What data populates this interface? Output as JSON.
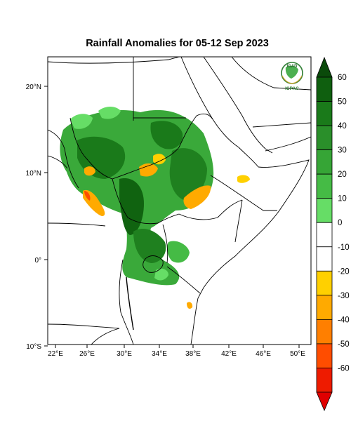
{
  "title": "Rainfall Anomalies for 05-12 Sep 2023",
  "logo": {
    "org_top": "IGAD",
    "org_bottom": "ICPAC"
  },
  "axes": {
    "lon_labels": [
      "22°E",
      "26°E",
      "30°E",
      "34°E",
      "38°E",
      "42°E",
      "46°E",
      "50°E"
    ],
    "lat_labels": [
      "20°N",
      "10°N",
      "0°",
      "10°S"
    ]
  },
  "colorbar": {
    "labels": [
      "60",
      "50",
      "40",
      "30",
      "20",
      "10",
      "0",
      "-10",
      "-20",
      "-30",
      "-40",
      "-50",
      "-60"
    ],
    "colors": [
      "#0f5f0f",
      "#1a7a1a",
      "#2a8f2a",
      "#36a536",
      "#45bb45",
      "#66dd66",
      "#ffffff",
      "#ffffff",
      "#ffd000",
      "#ffaa00",
      "#ff7f00",
      "#ff4d00",
      "#ee1b00"
    ],
    "top_arrow_color": "#0a4a0a",
    "bottom_arrow_color": "#e00000"
  }
}
